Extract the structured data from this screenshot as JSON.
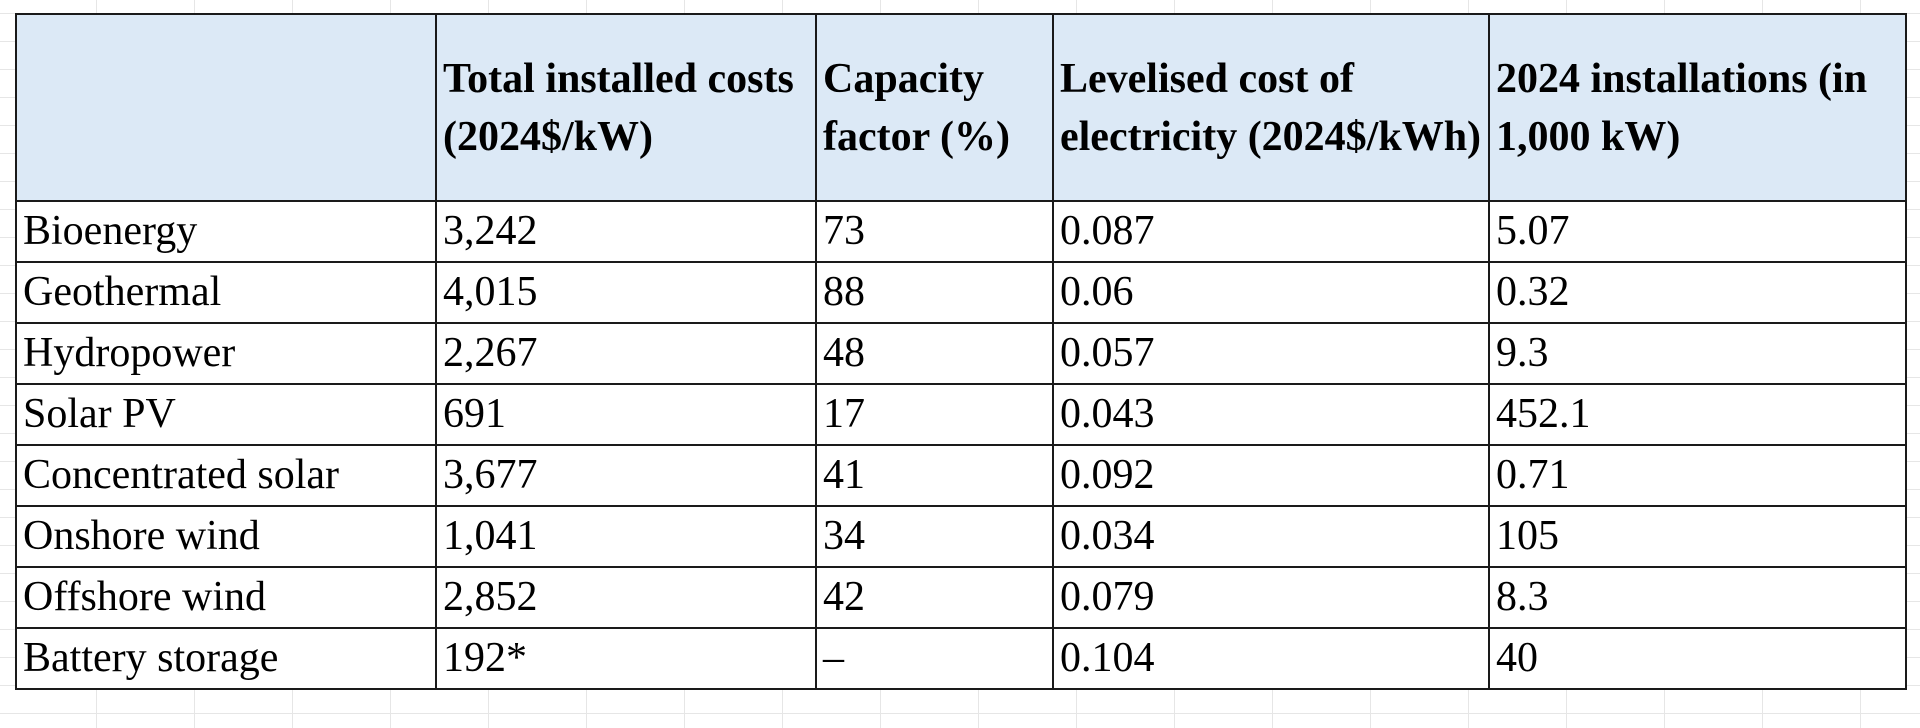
{
  "table": {
    "headers": [
      "",
      "Total installed costs (2024$/kW)",
      "Capacity factor (%)",
      "Levelised cost of electricity (2024$/kWh)",
      "2024 installations (in 1,000 kW)"
    ],
    "rows": [
      [
        "Bioenergy",
        "3,242",
        "73",
        "0.087",
        "5.07"
      ],
      [
        "Geothermal",
        "4,015",
        "88",
        "0.06",
        "0.32"
      ],
      [
        "Hydropower",
        "2,267",
        "48",
        "0.057",
        "9.3"
      ],
      [
        "Solar PV",
        "691",
        "17",
        "0.043",
        "452.1"
      ],
      [
        "Concentrated solar",
        "3,677",
        "41",
        "0.092",
        "0.71"
      ],
      [
        "Onshore wind",
        "1,041",
        "34",
        "0.034",
        "105"
      ],
      [
        "Offshore wind",
        "2,852",
        "42",
        "0.079",
        "8.3"
      ],
      [
        "Battery storage",
        "192*",
        "–",
        "0.104",
        "40"
      ]
    ]
  },
  "colors": {
    "header_background": "#dce9f6",
    "border": "#1a1a1a",
    "grid": "#e4e4e4"
  }
}
